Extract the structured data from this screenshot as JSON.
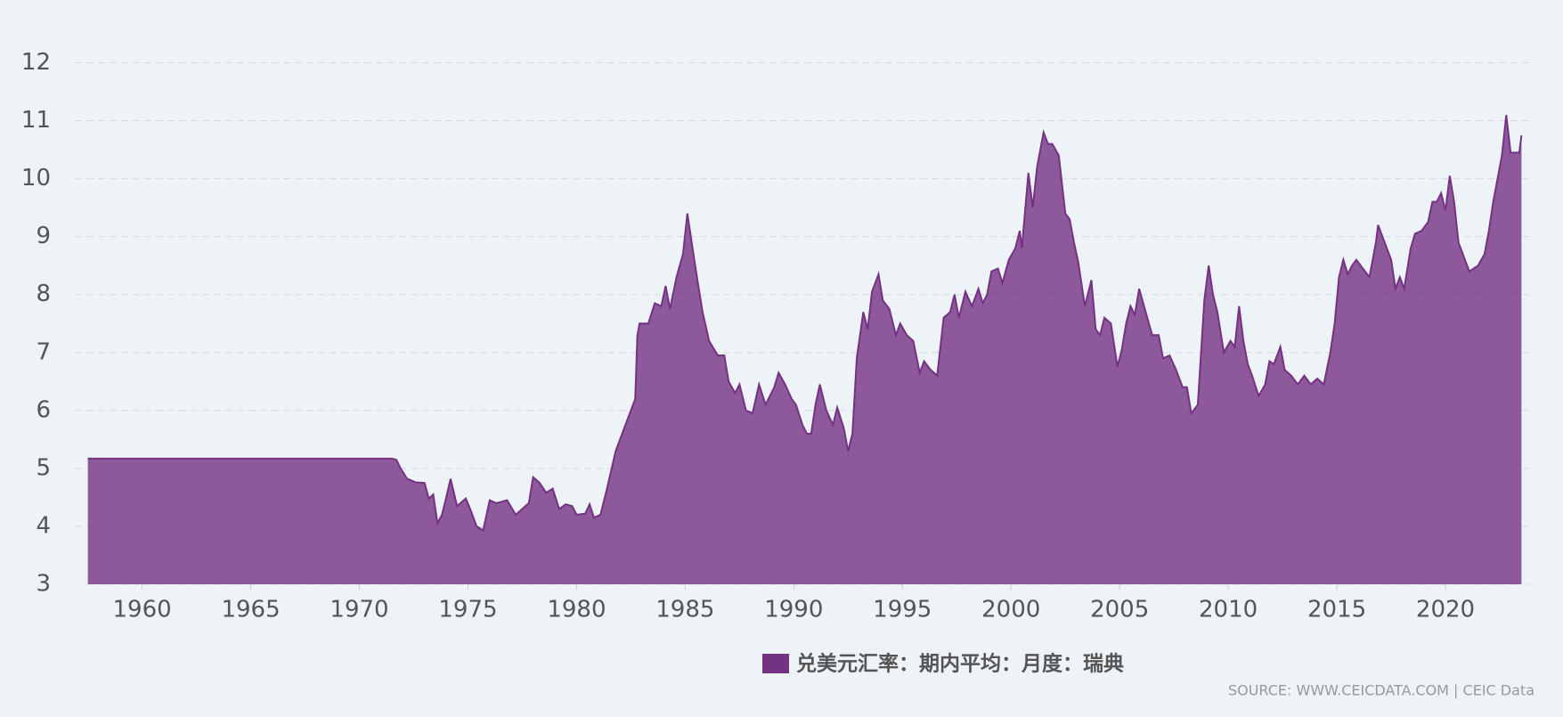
{
  "chart_data": {
    "type": "area",
    "x": [
      1957.5,
      1971.5,
      1971.7,
      1971.9,
      1972.2,
      1972.6,
      1973.0,
      1973.2,
      1973.4,
      1973.6,
      1973.8,
      1974.0,
      1974.2,
      1974.5,
      1974.9,
      1975.1,
      1975.4,
      1975.7,
      1976.0,
      1976.3,
      1976.8,
      1977.2,
      1977.5,
      1977.8,
      1978.0,
      1978.3,
      1978.6,
      1978.9,
      1979.2,
      1979.5,
      1979.8,
      1980.0,
      1980.4,
      1980.6,
      1980.8,
      1981.1,
      1981.4,
      1981.8,
      1982.1,
      1982.4,
      1982.7,
      1982.8,
      1982.9,
      1983.3,
      1983.6,
      1983.9,
      1984.1,
      1984.3,
      1984.6,
      1984.9,
      1985.1,
      1985.3,
      1985.5,
      1985.8,
      1986.1,
      1986.5,
      1986.8,
      1987.0,
      1987.3,
      1987.5,
      1987.8,
      1988.1,
      1988.4,
      1988.7,
      1989.1,
      1989.3,
      1989.6,
      1989.9,
      1990.1,
      1990.4,
      1990.6,
      1990.8,
      1991.0,
      1991.2,
      1991.5,
      1991.8,
      1992.0,
      1992.3,
      1992.5,
      1992.7,
      1992.9,
      1993.2,
      1993.4,
      1993.6,
      1993.9,
      1994.1,
      1994.4,
      1994.7,
      1994.9,
      1995.2,
      1995.5,
      1995.8,
      1996.0,
      1996.3,
      1996.6,
      1996.9,
      1997.2,
      1997.4,
      1997.6,
      1997.9,
      1998.2,
      1998.5,
      1998.7,
      1998.9,
      1999.1,
      1999.4,
      1999.6,
      1999.9,
      2000.2,
      2000.4,
      2000.5,
      2000.8,
      2001.0,
      2001.2,
      2001.5,
      2001.7,
      2001.9,
      2002.2,
      2002.5,
      2002.7,
      2002.9,
      2003.1,
      2003.4,
      2003.7,
      2003.9,
      2004.1,
      2004.3,
      2004.6,
      2004.9,
      2005.1,
      2005.3,
      2005.5,
      2005.7,
      2005.9,
      2006.2,
      2006.5,
      2006.8,
      2007.0,
      2007.3,
      2007.6,
      2007.9,
      2008.1,
      2008.3,
      2008.6,
      2008.9,
      2009.1,
      2009.3,
      2009.5,
      2009.8,
      2010.1,
      2010.3,
      2010.5,
      2010.7,
      2010.9,
      2011.1,
      2011.4,
      2011.7,
      2011.9,
      2012.1,
      2012.4,
      2012.6,
      2012.9,
      2013.2,
      2013.5,
      2013.8,
      2014.1,
      2014.4,
      2014.7,
      2014.9,
      2015.1,
      2015.3,
      2015.5,
      2015.7,
      2015.9,
      2016.2,
      2016.5,
      2016.8,
      2016.9,
      2017.2,
      2017.5,
      2017.7,
      2017.9,
      2018.1,
      2018.4,
      2018.6,
      2018.9,
      2019.2,
      2019.4,
      2019.6,
      2019.8,
      2020.0,
      2020.2,
      2020.4,
      2020.6,
      2020.9,
      2021.1,
      2021.3,
      2021.5,
      2021.8,
      2022.0,
      2022.2,
      2022.4,
      2022.6,
      2022.8,
      2023.0,
      2023.2,
      2023.4,
      2023.5
    ],
    "series": [
      {
        "name": "兑美元汇率：期内平均：月度：瑞典",
        "color": "#743283",
        "values": [
          5.17,
          5.17,
          5.15,
          5.0,
          4.82,
          4.76,
          4.75,
          4.48,
          4.55,
          4.05,
          4.2,
          4.5,
          4.82,
          4.35,
          4.48,
          4.3,
          4.0,
          3.93,
          4.45,
          4.4,
          4.45,
          4.2,
          4.3,
          4.4,
          4.85,
          4.75,
          4.58,
          4.65,
          4.3,
          4.38,
          4.35,
          4.2,
          4.22,
          4.38,
          4.15,
          4.2,
          4.65,
          5.3,
          5.6,
          5.9,
          6.2,
          7.3,
          7.5,
          7.5,
          7.85,
          7.8,
          8.15,
          7.75,
          8.3,
          8.7,
          9.4,
          8.9,
          8.4,
          7.7,
          7.2,
          6.95,
          6.95,
          6.5,
          6.3,
          6.45,
          6.0,
          5.95,
          6.45,
          6.1,
          6.4,
          6.65,
          6.45,
          6.2,
          6.1,
          5.75,
          5.6,
          5.6,
          6.1,
          6.45,
          6.0,
          5.75,
          6.05,
          5.7,
          5.3,
          5.6,
          6.9,
          7.7,
          7.4,
          8.05,
          8.35,
          7.9,
          7.75,
          7.3,
          7.5,
          7.3,
          7.2,
          6.65,
          6.85,
          6.7,
          6.6,
          7.6,
          7.7,
          8.0,
          7.6,
          8.05,
          7.8,
          8.1,
          7.85,
          8.0,
          8.4,
          8.45,
          8.2,
          8.6,
          8.8,
          9.1,
          8.8,
          10.1,
          9.5,
          10.2,
          10.8,
          10.6,
          10.6,
          10.4,
          9.4,
          9.3,
          8.9,
          8.55,
          7.8,
          8.25,
          7.4,
          7.3,
          7.6,
          7.5,
          6.75,
          7.05,
          7.5,
          7.8,
          7.65,
          8.1,
          7.7,
          7.3,
          7.3,
          6.9,
          6.95,
          6.7,
          6.4,
          6.4,
          5.95,
          6.1,
          7.9,
          8.5,
          8.0,
          7.7,
          7.0,
          7.2,
          7.1,
          7.8,
          7.2,
          6.8,
          6.6,
          6.25,
          6.45,
          6.85,
          6.8,
          7.1,
          6.7,
          6.6,
          6.45,
          6.6,
          6.45,
          6.55,
          6.45,
          7.0,
          7.5,
          8.3,
          8.6,
          8.35,
          8.5,
          8.6,
          8.45,
          8.3,
          8.9,
          9.2,
          8.9,
          8.6,
          8.1,
          8.3,
          8.1,
          8.8,
          9.05,
          9.1,
          9.25,
          9.6,
          9.6,
          9.75,
          9.45,
          10.05,
          9.6,
          8.9,
          8.6,
          8.4,
          8.45,
          8.5,
          8.7,
          9.1,
          9.6,
          10.0,
          10.4,
          11.1,
          10.45,
          10.45,
          10.45,
          10.75
        ]
      }
    ],
    "xlim": [
      1956.9,
      2024.1
    ],
    "xticks": [
      1960,
      1965,
      1970,
      1975,
      1980,
      1985,
      1990,
      1995,
      2000,
      2005,
      2010,
      2015,
      2020
    ],
    "ylim": [
      3,
      12
    ],
    "yticks": [
      3,
      4,
      5,
      6,
      7,
      8,
      9,
      10,
      11,
      12
    ],
    "grid": true,
    "source": "SOURCE: WWW.CEICDATA.COM | CEIC Data"
  }
}
